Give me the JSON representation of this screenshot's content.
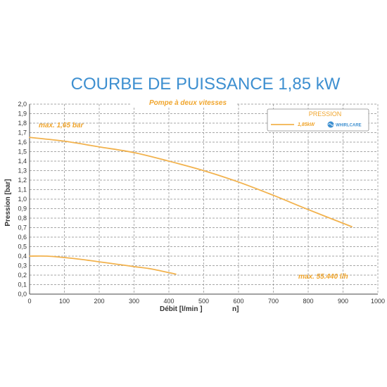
{
  "colors": {
    "title": "#3d8fd0",
    "curve": "#f2b24d",
    "annotation": "#f0a52c",
    "grid": "#8a8a8a",
    "axis": "#444444",
    "brand": "#3d8fd0"
  },
  "chart_data": {
    "type": "line",
    "title": "COURBE DE PUISSANCE 1,85 kW",
    "subtitle": "Pompe à deux vitesses",
    "xlabel": "Débit [l/min ]",
    "xlabel_suffix": "n]",
    "ylabel": "Pression [bar]",
    "xlim": [
      0,
      1000
    ],
    "ylim": [
      0,
      2.0
    ],
    "x_ticks": [
      0,
      100,
      200,
      300,
      400,
      500,
      600,
      700,
      800,
      900,
      1000
    ],
    "x_tick_labels": [
      "0",
      "100",
      "200",
      "300",
      "400",
      "500",
      "600",
      "700",
      "800",
      "900",
      "1000"
    ],
    "y_ticks": [
      0,
      0.1,
      0.2,
      0.3,
      0.4,
      0.5,
      0.6,
      0.7,
      0.8,
      0.9,
      1.0,
      1.1,
      1.2,
      1.3,
      1.4,
      1.5,
      1.6,
      1.7,
      1.8,
      1.9,
      2.0
    ],
    "y_tick_labels": [
      "0,0",
      "0,1",
      "0,2",
      "0,3",
      "0,4",
      "0,5",
      "0,6",
      "0,7",
      "0,8",
      "0,9",
      "1,0",
      "1,1",
      "1,2",
      "1,3",
      "1,4",
      "1,5",
      "1,6",
      "1,7",
      "1,8",
      "1,9",
      "2,0"
    ],
    "grid": true,
    "legend": {
      "position": "top-right",
      "title": "PRESSION",
      "entry_label": "1,85kW",
      "brand": "WHIRLCARE"
    },
    "series": [
      {
        "x": [
          0,
          100,
          200,
          300,
          400,
          500,
          600,
          700,
          800,
          925
        ],
        "y": [
          1.65,
          1.61,
          1.55,
          1.49,
          1.4,
          1.3,
          1.18,
          1.04,
          0.89,
          0.71
        ]
      },
      {
        "x": [
          0,
          50,
          100,
          150,
          200,
          250,
          300,
          350,
          420
        ],
        "y": [
          0.4,
          0.4,
          0.385,
          0.365,
          0.34,
          0.315,
          0.29,
          0.265,
          0.21
        ]
      }
    ],
    "annotations": {
      "max_pressure": "max. 1,65 bar",
      "max_flow": "max. 55.440 l/h"
    }
  }
}
